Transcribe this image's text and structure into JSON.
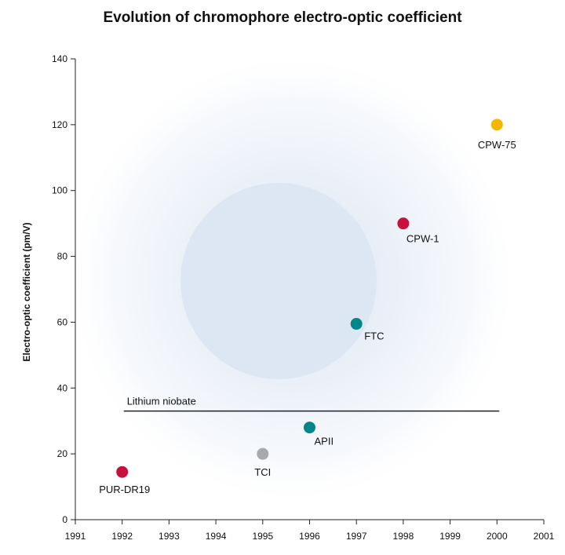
{
  "chart_data": {
    "type": "scatter",
    "title": "Evolution of chromophore electro-optic coefficient",
    "xlabel": "",
    "ylabel": "Electro-optic coefficient (pm/V)",
    "xlim": [
      1991,
      2001
    ],
    "ylim": [
      0,
      140
    ],
    "x_ticks": [
      1991,
      1992,
      1993,
      1994,
      1995,
      1996,
      1997,
      1998,
      1999,
      2000,
      2001
    ],
    "y_ticks": [
      0,
      20,
      40,
      60,
      80,
      100,
      120,
      140
    ],
    "grid": false,
    "points": [
      {
        "label": "PUR-DR19",
        "x": 1992,
        "y": 14.5,
        "color": "#c8103e"
      },
      {
        "label": "TCI",
        "x": 1995,
        "y": 20,
        "color": "#a7a9ac"
      },
      {
        "label": "APII",
        "x": 1996,
        "y": 28,
        "color": "#00878a"
      },
      {
        "label": "FTC",
        "x": 1997,
        "y": 59.5,
        "color": "#00878a"
      },
      {
        "label": "CPW-1",
        "x": 1998,
        "y": 90,
        "color": "#c8103e"
      },
      {
        "label": "CPW-75",
        "x": 2000,
        "y": 120,
        "color": "#f4b700"
      }
    ],
    "reference_line": {
      "label": "Lithium niobate",
      "y": 33,
      "x_start": 1992,
      "x_end": 2000
    }
  }
}
